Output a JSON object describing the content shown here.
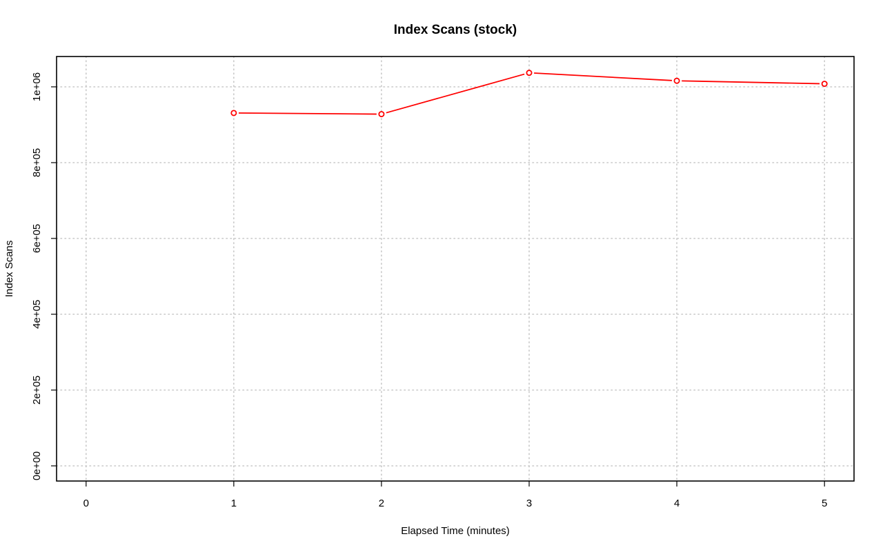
{
  "chart_data": {
    "type": "line",
    "title": "Index Scans (stock)",
    "xlabel": "Elapsed Time (minutes)",
    "ylabel": "Index Scans",
    "xlim": [
      -0.2,
      5.2
    ],
    "ylim": [
      -40000,
      1080000
    ],
    "x_ticks": [
      0,
      1,
      2,
      3,
      4,
      5
    ],
    "x_tick_labels": [
      "0",
      "1",
      "2",
      "3",
      "4",
      "5"
    ],
    "y_ticks": [
      0,
      200000,
      400000,
      600000,
      800000,
      1000000
    ],
    "y_tick_labels": [
      "0e+00",
      "2e+05",
      "4e+05",
      "6e+05",
      "8e+05",
      "1e+06"
    ],
    "grid": true,
    "series": [
      {
        "color": "#ff0000",
        "x": [
          1,
          2,
          3,
          4,
          5
        ],
        "values": [
          931000,
          928000,
          1037000,
          1016000,
          1008000
        ]
      }
    ]
  }
}
